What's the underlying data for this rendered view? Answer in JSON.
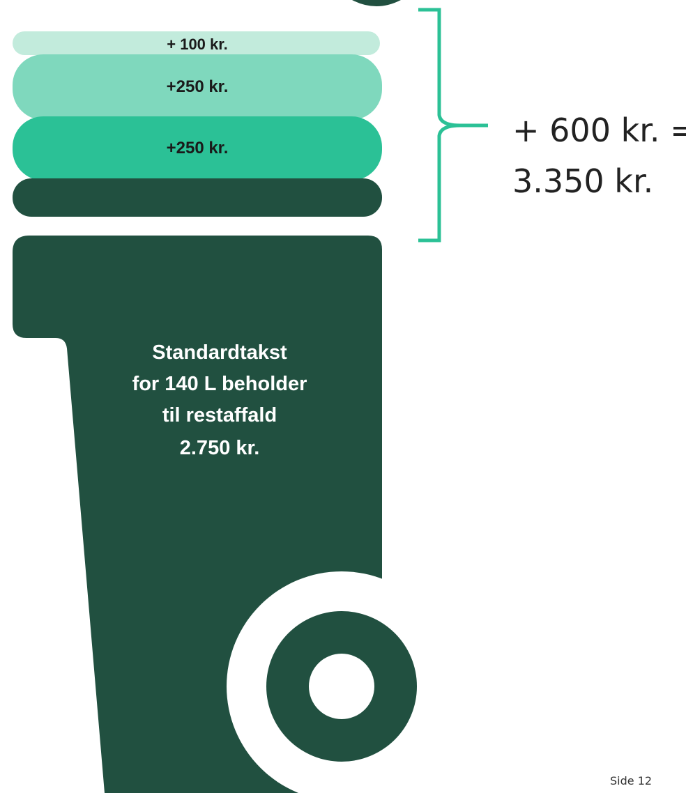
{
  "layers": [
    {
      "label": "+ 100 kr."
    },
    {
      "label": "+250 kr."
    },
    {
      "label": "+250 kr."
    }
  ],
  "bin": {
    "lines": [
      "Standardtakst",
      "for 140 L beholder",
      "til restaffald"
    ],
    "price": "2.750 kr."
  },
  "total": {
    "lines": [
      "+ 600 kr. =",
      "3.350 kr."
    ]
  },
  "footer": {
    "page": "Side 12"
  }
}
